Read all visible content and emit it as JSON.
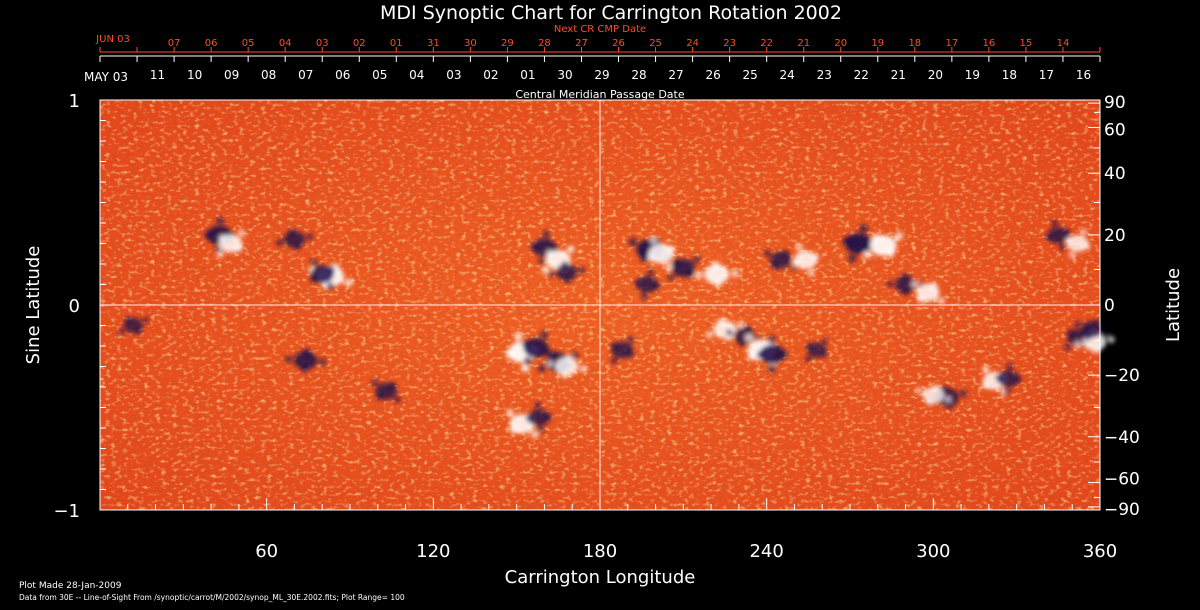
{
  "chart_data": {
    "type": "heatmap",
    "title": "MDI Synoptic Chart for Carrington Rotation 2002",
    "xlabel": "Carrington Longitude",
    "ylabel_left": "Sine Latitude",
    "ylabel_right": "Latitude",
    "xlim": [
      0,
      360
    ],
    "ylim": [
      -1,
      1
    ],
    "x_ticks": [
      60,
      120,
      180,
      240,
      300,
      360
    ],
    "y_ticks_left": [
      {
        "value": 1,
        "label": "1"
      },
      {
        "value": 0,
        "label": "0"
      },
      {
        "value": -1,
        "label": "−1"
      }
    ],
    "y_ticks_right_latitude": [
      {
        "value": 90,
        "label": "90"
      },
      {
        "value": 60,
        "label": "60"
      },
      {
        "value": 40,
        "label": "40"
      },
      {
        "value": 20,
        "label": "20"
      },
      {
        "value": 0,
        "label": "0"
      },
      {
        "value": -20,
        "label": "−20"
      },
      {
        "value": -40,
        "label": "−40"
      },
      {
        "value": -60,
        "label": "−60"
      },
      {
        "value": -90,
        "label": "−90"
      }
    ],
    "top_axis": {
      "caption": "Central Meridian Passage Date",
      "start_label": "MAY 03",
      "dates": [
        "11",
        "10",
        "09",
        "08",
        "07",
        "06",
        "05",
        "04",
        "03",
        "02",
        "01",
        "30",
        "29",
        "28",
        "27",
        "26",
        "25",
        "24",
        "23",
        "22",
        "21",
        "20",
        "19",
        "18",
        "17",
        "16"
      ]
    },
    "next_cr_axis": {
      "caption": "Next CR CMP Date",
      "start_label": "JUN 03",
      "dates": [
        "07",
        "06",
        "05",
        "04",
        "03",
        "02",
        "01",
        "31",
        "30",
        "29",
        "28",
        "27",
        "26",
        "25",
        "24",
        "23",
        "22",
        "21",
        "20",
        "19",
        "18",
        "17",
        "16",
        "15",
        "14"
      ]
    },
    "colors": {
      "background": "#e8501a",
      "positive_polarity": "#ffffff",
      "negative_polarity": "#1a0a4a",
      "guide_lines": "#ffffff",
      "next_cr_text": "#ff4a2a"
    },
    "reference_lines": {
      "x": 180,
      "y": 0
    },
    "magnetic_regions": [
      {
        "lon": 43,
        "sinlat": 0.34,
        "polarity": "negative",
        "strength": 0.8
      },
      {
        "lon": 47,
        "sinlat": 0.3,
        "polarity": "positive",
        "strength": 0.7
      },
      {
        "lon": 70,
        "sinlat": 0.32,
        "polarity": "negative",
        "strength": 0.6
      },
      {
        "lon": 83,
        "sinlat": 0.14,
        "polarity": "positive",
        "strength": 0.9
      },
      {
        "lon": 80,
        "sinlat": 0.15,
        "polarity": "negative",
        "strength": 0.7
      },
      {
        "lon": 160,
        "sinlat": 0.28,
        "polarity": "negative",
        "strength": 0.7
      },
      {
        "lon": 165,
        "sinlat": 0.22,
        "polarity": "positive",
        "strength": 0.8
      },
      {
        "lon": 168,
        "sinlat": 0.16,
        "polarity": "negative",
        "strength": 0.6
      },
      {
        "lon": 198,
        "sinlat": 0.27,
        "polarity": "negative",
        "strength": 0.9
      },
      {
        "lon": 202,
        "sinlat": 0.25,
        "polarity": "positive",
        "strength": 0.8
      },
      {
        "lon": 197,
        "sinlat": 0.1,
        "polarity": "negative",
        "strength": 0.6
      },
      {
        "lon": 210,
        "sinlat": 0.18,
        "polarity": "negative",
        "strength": 0.7
      },
      {
        "lon": 222,
        "sinlat": 0.15,
        "polarity": "positive",
        "strength": 0.8
      },
      {
        "lon": 245,
        "sinlat": 0.22,
        "polarity": "negative",
        "strength": 0.6
      },
      {
        "lon": 254,
        "sinlat": 0.22,
        "polarity": "positive",
        "strength": 0.7
      },
      {
        "lon": 273,
        "sinlat": 0.3,
        "polarity": "negative",
        "strength": 0.9
      },
      {
        "lon": 282,
        "sinlat": 0.29,
        "polarity": "positive",
        "strength": 0.9
      },
      {
        "lon": 290,
        "sinlat": 0.1,
        "polarity": "negative",
        "strength": 0.6
      },
      {
        "lon": 298,
        "sinlat": 0.06,
        "polarity": "positive",
        "strength": 0.7
      },
      {
        "lon": 345,
        "sinlat": 0.34,
        "polarity": "negative",
        "strength": 0.6
      },
      {
        "lon": 352,
        "sinlat": 0.3,
        "polarity": "positive",
        "strength": 0.6
      },
      {
        "lon": 12,
        "sinlat": -0.1,
        "polarity": "negative",
        "strength": 0.5
      },
      {
        "lon": 74,
        "sinlat": -0.27,
        "polarity": "negative",
        "strength": 0.7
      },
      {
        "lon": 103,
        "sinlat": -0.42,
        "polarity": "negative",
        "strength": 0.6
      },
      {
        "lon": 152,
        "sinlat": -0.23,
        "polarity": "positive",
        "strength": 0.95
      },
      {
        "lon": 157,
        "sinlat": -0.21,
        "polarity": "negative",
        "strength": 0.8
      },
      {
        "lon": 165,
        "sinlat": -0.28,
        "polarity": "negative",
        "strength": 0.8
      },
      {
        "lon": 168,
        "sinlat": -0.3,
        "polarity": "positive",
        "strength": 0.7
      },
      {
        "lon": 152,
        "sinlat": -0.58,
        "polarity": "positive",
        "strength": 0.8
      },
      {
        "lon": 158,
        "sinlat": -0.55,
        "polarity": "negative",
        "strength": 0.6
      },
      {
        "lon": 188,
        "sinlat": -0.22,
        "polarity": "negative",
        "strength": 0.6
      },
      {
        "lon": 225,
        "sinlat": -0.12,
        "polarity": "positive",
        "strength": 0.7
      },
      {
        "lon": 232,
        "sinlat": -0.15,
        "polarity": "negative",
        "strength": 0.6
      },
      {
        "lon": 238,
        "sinlat": -0.22,
        "polarity": "positive",
        "strength": 0.9
      },
      {
        "lon": 242,
        "sinlat": -0.24,
        "polarity": "negative",
        "strength": 0.8
      },
      {
        "lon": 258,
        "sinlat": -0.22,
        "polarity": "negative",
        "strength": 0.5
      },
      {
        "lon": 305,
        "sinlat": -0.45,
        "polarity": "negative",
        "strength": 0.7
      },
      {
        "lon": 300,
        "sinlat": -0.44,
        "polarity": "positive",
        "strength": 0.6
      },
      {
        "lon": 322,
        "sinlat": -0.37,
        "polarity": "positive",
        "strength": 0.7
      },
      {
        "lon": 327,
        "sinlat": -0.36,
        "polarity": "negative",
        "strength": 0.6
      },
      {
        "lon": 352,
        "sinlat": -0.16,
        "polarity": "negative",
        "strength": 0.6
      },
      {
        "lon": 358,
        "sinlat": -0.18,
        "polarity": "positive",
        "strength": 0.7
      },
      {
        "lon": 357,
        "sinlat": -0.12,
        "polarity": "negative",
        "strength": 0.6
      }
    ]
  },
  "footer": {
    "plot_made": "Plot Made 28-Jan-2009",
    "data_source": "Data from 30E -- Line-of-Sight From /synoptic/carrot/M/2002/synop_ML_30E.2002.fits; Plot Range= 100"
  }
}
